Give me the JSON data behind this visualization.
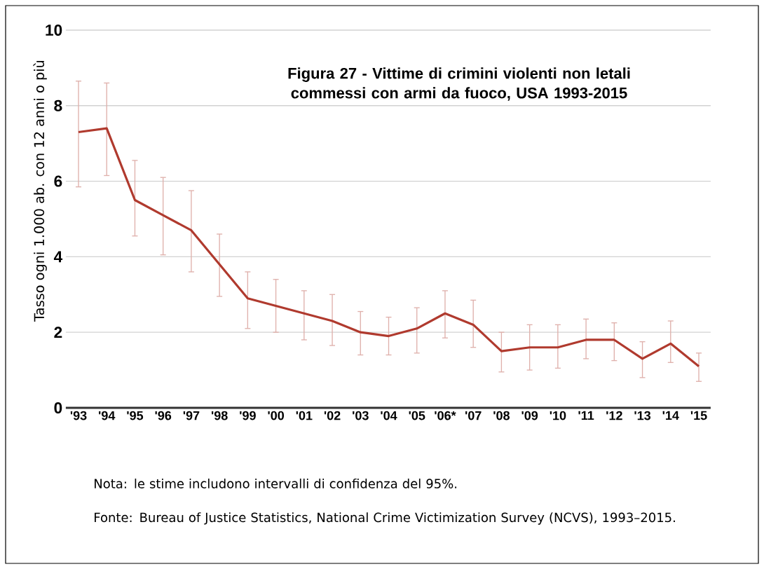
{
  "chart_data": {
    "type": "line",
    "title": "Figura 27 - Vittime di crimini violenti non letali commessi con armi da fuoco, USA 1993-2015",
    "ylabel": "Tasso ogni 1.000 ab. con 12 anni o più",
    "categories": [
      "'93",
      "'94",
      "'95",
      "'96",
      "'97",
      "'98",
      "'99",
      "'00",
      "'01",
      "'02",
      "'03",
      "'04",
      "'05",
      "'06*",
      "'07",
      "'08",
      "'09",
      "'10",
      "'11",
      "'12",
      "'13",
      "'14",
      "'15"
    ],
    "series": [
      {
        "color": "#b03a2e",
        "values": [
          7.3,
          7.4,
          5.5,
          5.1,
          4.7,
          3.8,
          2.9,
          2.7,
          2.5,
          2.3,
          2.0,
          1.9,
          2.1,
          2.5,
          2.2,
          1.5,
          1.6,
          1.6,
          1.8,
          1.8,
          1.3,
          1.7,
          1.1
        ],
        "errors": [
          [
            5.85,
            8.65
          ],
          [
            6.15,
            8.6
          ],
          [
            4.55,
            6.55
          ],
          [
            4.05,
            6.1
          ],
          [
            3.6,
            5.75
          ],
          [
            2.95,
            4.6
          ],
          [
            2.1,
            3.6
          ],
          [
            2.0,
            3.4
          ],
          [
            1.8,
            3.1
          ],
          [
            1.65,
            3.0
          ],
          [
            1.4,
            2.55
          ],
          [
            1.4,
            2.4
          ],
          [
            1.45,
            2.65
          ],
          [
            1.85,
            3.1
          ],
          [
            1.6,
            2.85
          ],
          [
            0.95,
            2.0
          ],
          [
            1.0,
            2.2
          ],
          [
            1.05,
            2.2
          ],
          [
            1.3,
            2.35
          ],
          [
            1.25,
            2.25
          ],
          [
            0.8,
            1.75
          ],
          [
            1.2,
            2.3
          ],
          [
            0.7,
            1.45
          ]
        ]
      }
    ],
    "ylim": [
      0,
      10
    ],
    "yticks": [
      0,
      2,
      4,
      6,
      8,
      10
    ],
    "grid": "y",
    "marker": "none",
    "line_style": "solid",
    "annotations": [
      "Nota: le stime includono intervalli di confidenza del 95%.",
      "Fonte: Bureau of Justice Statistics, National Crime Victimization Survey (NCVS), 1993–2015."
    ]
  }
}
